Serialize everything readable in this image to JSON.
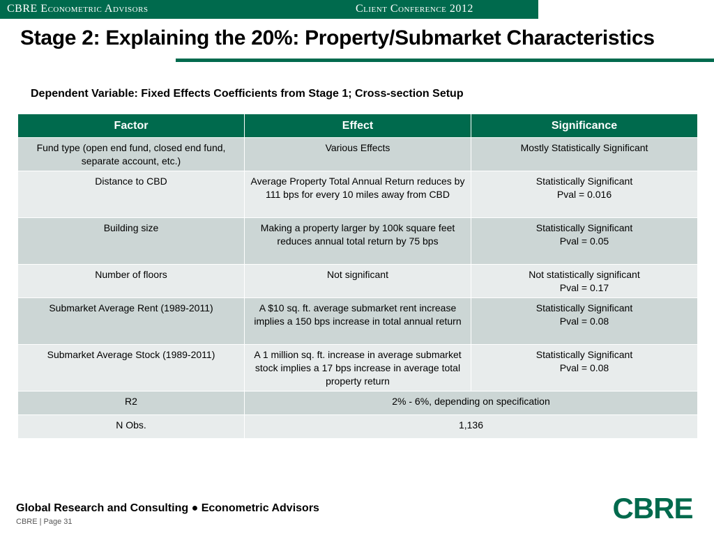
{
  "header": {
    "left": "CBRE Econometric Advisors",
    "right": "Client Conference 2012"
  },
  "title": "Stage 2: Explaining the 20%: Property/Submarket Characteristics",
  "subtitle": "Dependent Variable: Fixed Effects Coefficients from Stage 1; Cross-section Setup",
  "table": {
    "headers": [
      "Factor",
      "Effect",
      "Significance"
    ],
    "rows": [
      {
        "factor": "Fund type (open end fund, closed end fund, separate account, etc.)",
        "effect": "Various Effects",
        "sig1": "Mostly Statistically Significant",
        "sig2": ""
      },
      {
        "factor": "Distance to CBD",
        "effect": "Average Property Total Annual Return reduces by 111 bps for every 10 miles away from CBD",
        "sig1": "Statistically Significant",
        "sig2": "Pval = 0.016"
      },
      {
        "factor": "Building size",
        "effect": "Making a property larger by 100k square feet reduces annual total return by 75 bps",
        "sig1": "Statistically Significant",
        "sig2": "Pval = 0.05"
      },
      {
        "factor": "Number of floors",
        "effect": "Not significant",
        "sig1": "Not statistically significant",
        "sig2": "Pval = 0.17"
      },
      {
        "factor": "Submarket Average Rent (1989-2011)",
        "effect": "A $10 sq. ft. average submarket rent increase implies a 150 bps increase in total annual return",
        "sig1": "Statistically Significant",
        "sig2": "Pval = 0.08"
      },
      {
        "factor": "Submarket Average Stock (1989-2011)",
        "effect": "A 1 million sq. ft. increase in average submarket stock implies a 17 bps increase in average total property return",
        "sig1": "Statistically Significant",
        "sig2": "Pval = 0.08"
      }
    ],
    "summary": [
      {
        "label": "R2",
        "value": "2% - 6%, depending on specification"
      },
      {
        "label": "N Obs.",
        "value": "1,136"
      }
    ]
  },
  "footer": {
    "text": "Global Research and Consulting ● Econometric Advisors",
    "page": "CBRE  |  Page 31"
  },
  "logo": {
    "text": "CBRE"
  },
  "colors": {
    "brand_green": "#006a4d",
    "row_dark": "#ccd6d5",
    "row_light": "#e8ecec"
  }
}
